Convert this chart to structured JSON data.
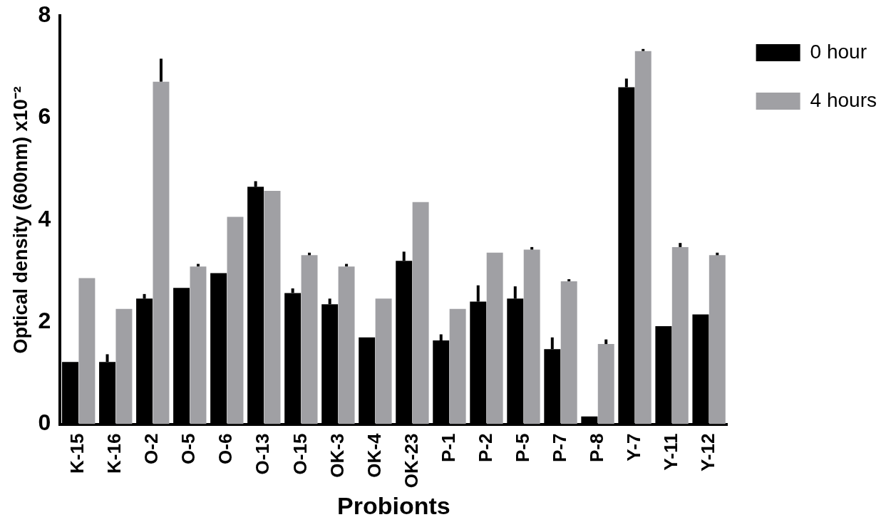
{
  "chart_data": {
    "type": "bar",
    "xlabel": "Probionts",
    "ylabel": "Optical density (600nm) x10⁻²",
    "categories": [
      "K-15",
      "K-16",
      "O-2",
      "O-5",
      "O-6",
      "O-13",
      "O-15",
      "OK-3",
      "OK-4",
      "OK-23",
      "P-1",
      "P-2",
      "P-5",
      "P-7",
      "P-8",
      "Y-7",
      "Y-11",
      "Y-12"
    ],
    "series": [
      {
        "name": "0 hour",
        "color": "#000000",
        "values": [
          1.22,
          1.22,
          2.46,
          2.67,
          2.96,
          4.65,
          2.57,
          2.35,
          1.7,
          3.2,
          1.64,
          2.4,
          2.46,
          1.47,
          0.15,
          6.6,
          1.92,
          2.15
        ],
        "errors": [
          null,
          [
            1.22,
            1.37
          ],
          [
            2.46,
            2.55
          ],
          null,
          null,
          [
            4.65,
            4.76
          ],
          [
            2.57,
            2.66
          ],
          [
            2.35,
            2.46
          ],
          null,
          [
            3.2,
            3.38
          ],
          [
            1.64,
            1.76
          ],
          [
            2.4,
            2.72
          ],
          [
            2.46,
            2.7
          ],
          [
            1.47,
            1.7
          ],
          null,
          [
            6.6,
            6.77
          ],
          null,
          null
        ]
      },
      {
        "name": "4 hours",
        "color": "#a0a0a4",
        "values": [
          2.86,
          2.26,
          6.71,
          3.09,
          4.06,
          4.57,
          3.31,
          3.09,
          2.46,
          4.35,
          2.26,
          3.36,
          3.42,
          2.8,
          1.57,
          7.31,
          3.47,
          3.31
        ],
        "errors": [
          null,
          null,
          [
            6.71,
            7.16
          ],
          [
            3.09,
            3.14
          ],
          null,
          null,
          [
            3.31,
            3.36
          ],
          [
            3.09,
            3.14
          ],
          null,
          null,
          null,
          null,
          [
            3.42,
            3.47
          ],
          [
            2.8,
            2.84
          ],
          [
            1.57,
            1.66
          ],
          [
            7.31,
            7.35
          ],
          [
            3.47,
            3.55
          ],
          [
            3.31,
            3.36
          ]
        ]
      }
    ],
    "ylim": [
      0,
      8
    ],
    "yticks": [
      0,
      2,
      4,
      6,
      8
    ],
    "grid": false,
    "legend": "top right"
  }
}
